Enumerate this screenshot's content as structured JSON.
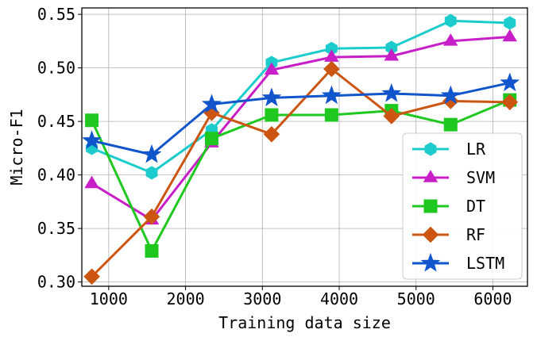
{
  "chart_data": {
    "type": "line",
    "title": "",
    "xlabel": "Training data size",
    "ylabel": "Micro-F1",
    "xlim": [
      650,
      6450
    ],
    "ylim": [
      0.296,
      0.556
    ],
    "xticks": [
      1000,
      2000,
      3000,
      4000,
      5000,
      6000
    ],
    "yticks": [
      0.3,
      0.35,
      0.4,
      0.45,
      0.5,
      0.55
    ],
    "ytick_labels": [
      "0.30",
      "0.35",
      "0.40",
      "0.45",
      "0.50",
      "0.55"
    ],
    "grid": true,
    "legend_position": "lower-right",
    "x": [
      780,
      1560,
      2340,
      3120,
      3900,
      4680,
      5450,
      6220
    ],
    "series": [
      {
        "name": "LR",
        "color": "#1ccccc",
        "marker": "hexagon",
        "values": [
          0.425,
          0.402,
          0.442,
          0.505,
          0.518,
          0.519,
          0.544,
          0.542
        ]
      },
      {
        "name": "SVM",
        "color": "#c81ec8",
        "marker": "triangle",
        "values": [
          0.392,
          0.358,
          0.43,
          0.498,
          0.51,
          0.511,
          0.525,
          0.529
        ]
      },
      {
        "name": "DT",
        "color": "#1ec81e",
        "marker": "square",
        "values": [
          0.451,
          0.329,
          0.434,
          0.456,
          0.456,
          0.46,
          0.447,
          0.47
        ]
      },
      {
        "name": "RF",
        "color": "#cc5511",
        "marker": "diamond",
        "values": [
          0.305,
          0.361,
          0.458,
          0.438,
          0.499,
          0.455,
          0.469,
          0.468
        ]
      },
      {
        "name": "LSTM",
        "color": "#1155cc",
        "marker": "star",
        "values": [
          0.432,
          0.419,
          0.466,
          0.472,
          0.474,
          0.476,
          0.474,
          0.486
        ]
      }
    ]
  }
}
